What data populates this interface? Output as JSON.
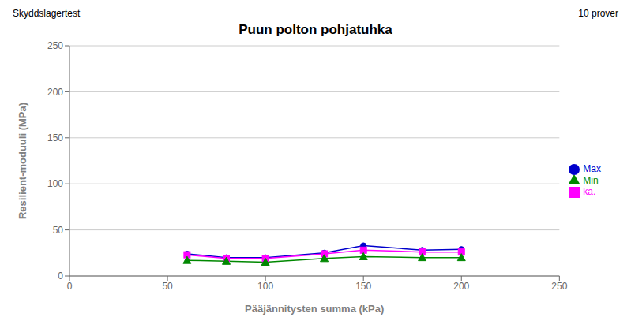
{
  "chart_data": {
    "type": "line",
    "title": "Puun polton pohjatuhka",
    "annotations": [
      "Skyddslagertest",
      "10 prover"
    ],
    "x_label": "Pääjännitysten summa (kPa)",
    "y_label": "Resilient-moduuli (MPa)",
    "x": [
      60,
      80,
      100,
      130,
      150,
      180,
      200
    ],
    "series": [
      {
        "name": "Max",
        "color": "#0000CC",
        "marker": "circle",
        "values": [
          24,
          20,
          20,
          25,
          33,
          28,
          29
        ]
      },
      {
        "name": "ka.",
        "color": "#FF00FF",
        "marker": "square",
        "values": [
          23,
          19,
          19,
          24,
          28,
          26,
          26
        ]
      },
      {
        "name": "Min",
        "color": "#008800",
        "marker": "triangle",
        "values": [
          17,
          16,
          15,
          19,
          21,
          20,
          20
        ]
      }
    ],
    "xlim": [
      0,
      250
    ],
    "ylim": [
      0,
      250
    ],
    "xticks": [
      0,
      50,
      100,
      150,
      200,
      250
    ],
    "yticks": [
      0,
      50,
      100,
      150,
      200,
      250
    ],
    "grid": true,
    "legend": "right"
  }
}
